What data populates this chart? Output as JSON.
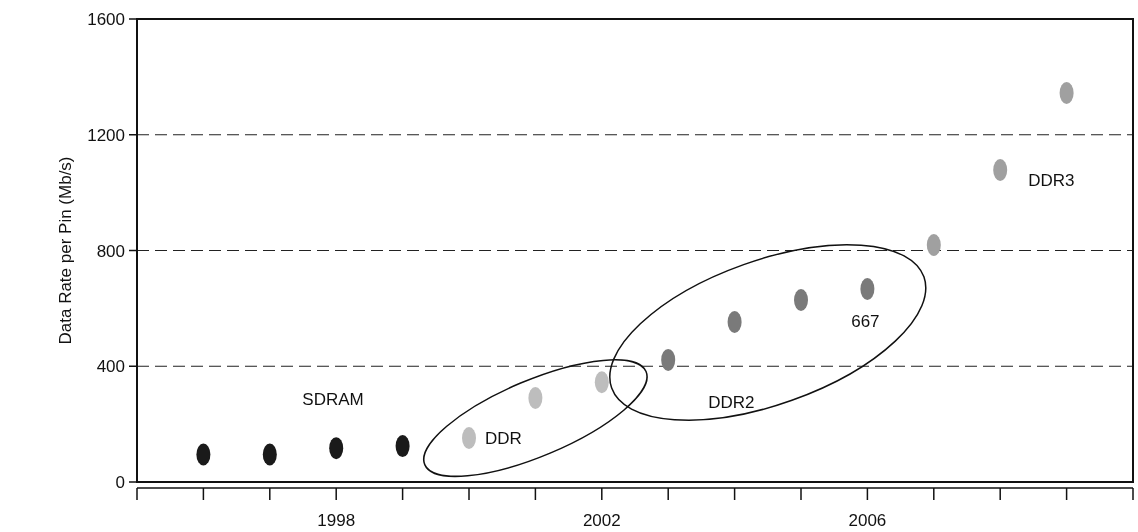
{
  "chart_data": {
    "type": "scatter",
    "ylabel": "Data Rate per Pin (Mb/s)",
    "xlim": [
      1995,
      2010
    ],
    "xticks": [
      {
        "value": 1995,
        "label": null
      },
      {
        "value": 1996,
        "label": null
      },
      {
        "value": 1997,
        "label": null
      },
      1998,
      {
        "value": 1999,
        "label": null
      },
      {
        "value": 2000,
        "label": null
      },
      {
        "value": 2001,
        "label": null
      },
      2002,
      {
        "value": 2003,
        "label": null
      },
      {
        "value": 2004,
        "label": null
      },
      {
        "value": 2005,
        "label": null
      },
      2006,
      {
        "value": 2007,
        "label": null
      },
      {
        "value": 2008,
        "label": null
      },
      {
        "value": 2009,
        "label": null
      },
      {
        "value": 2010,
        "label": null
      }
    ],
    "ylim": [
      0,
      1600
    ],
    "yticks": [
      0,
      400,
      800,
      1200,
      1600
    ],
    "grid": "y",
    "marker": "circle",
    "series": [
      {
        "color": "#1a1a1a",
        "x": [
          1996,
          1997,
          1998,
          1999
        ],
        "values": [
          95,
          95,
          117,
          124
        ]
      },
      {
        "color": "#bdbdbd",
        "x": [
          2000,
          2001,
          2002
        ],
        "values": [
          152,
          290,
          345
        ]
      },
      {
        "color": "#7a7a7a",
        "x": [
          2003,
          2004,
          2005,
          2006
        ],
        "values": [
          422,
          553,
          629,
          667
        ]
      },
      {
        "color": "#a0a0a0",
        "x": [
          2007,
          2008,
          2009
        ],
        "values": [
          819,
          1078,
          1344
        ]
      }
    ],
    "annotations": [
      "SDRAM",
      "DDR",
      "DDR2",
      {
        "text": "667",
        "x": 2006,
        "y": 667
      },
      "DDR3"
    ]
  }
}
